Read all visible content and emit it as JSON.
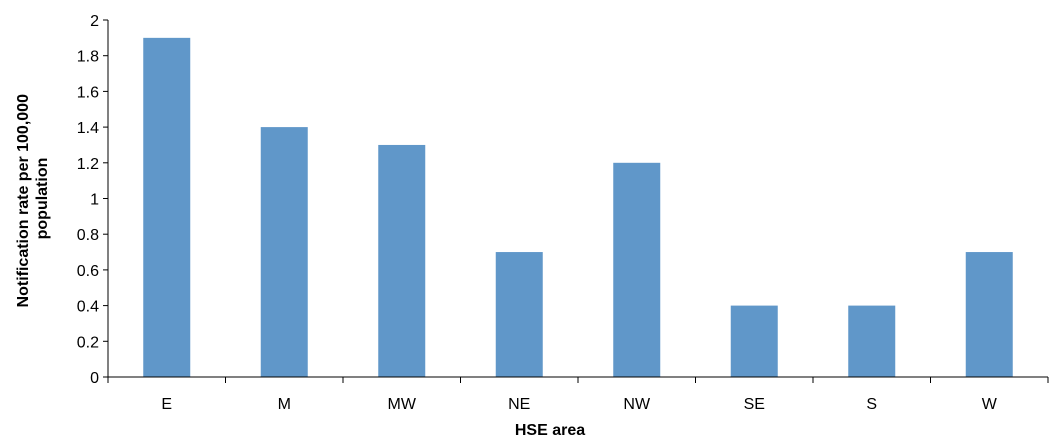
{
  "chart_data": {
    "type": "bar",
    "title": "",
    "xlabel": "HSE area",
    "ylabel_lines": [
      "Notification rate per 100,000",
      "population"
    ],
    "categories": [
      "E",
      "M",
      "MW",
      "NE",
      "NW",
      "SE",
      "S",
      "W"
    ],
    "values": [
      1.9,
      1.4,
      1.3,
      0.7,
      1.2,
      0.4,
      0.4,
      0.7
    ],
    "ylim": [
      0,
      2
    ],
    "yticks": [
      0,
      0.2,
      0.4,
      0.6,
      0.8,
      1,
      1.2,
      1.4,
      1.6,
      1.8,
      2
    ],
    "grid": false,
    "legend": "none",
    "bar_color": "#6097C9"
  }
}
